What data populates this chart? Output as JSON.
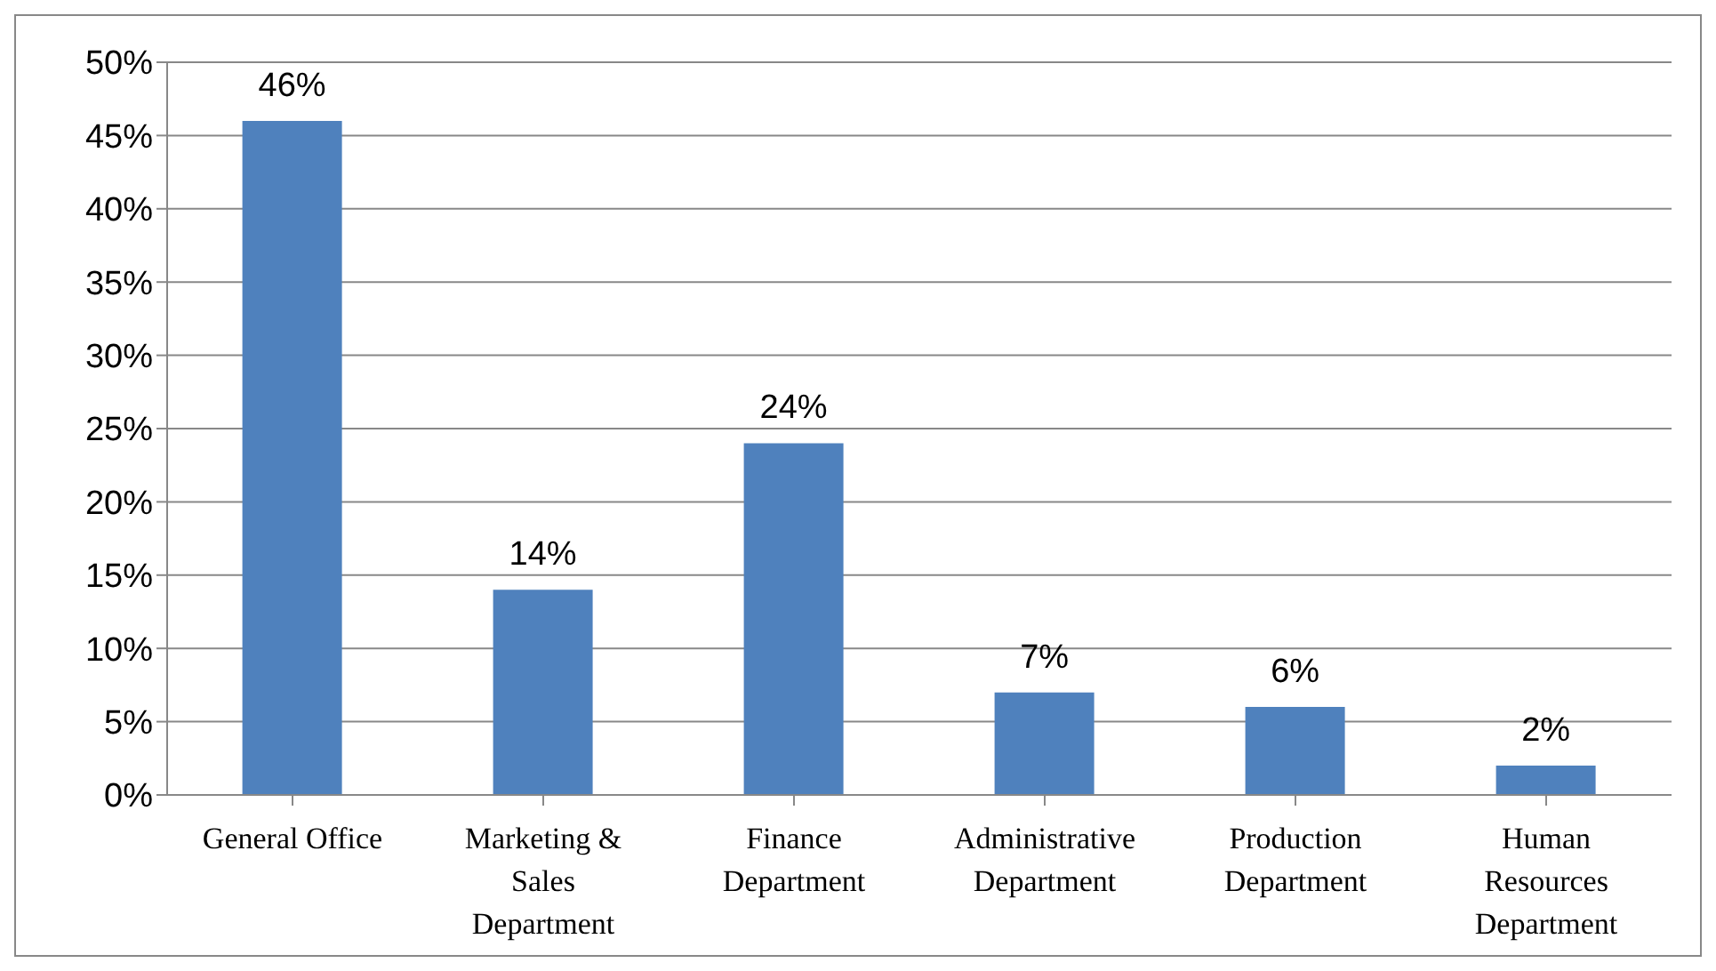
{
  "chart_data": {
    "type": "bar",
    "categories": [
      "General Office",
      "Marketing & Sales Department",
      "Finance Department",
      "Administrative Department",
      "Production Department",
      "Human Resources Department"
    ],
    "values": [
      46,
      14,
      24,
      7,
      6,
      2
    ],
    "color": "#4f81bd",
    "ylim": [
      0,
      50
    ],
    "yticks": [
      {
        "value": 0,
        "label": "0%"
      },
      {
        "value": 5,
        "label": "5%"
      },
      {
        "value": 10,
        "label": "10%"
      },
      {
        "value": 15,
        "label": "15%"
      },
      {
        "value": 20,
        "label": "20%"
      },
      {
        "value": 25,
        "label": "25%"
      },
      {
        "value": 30,
        "label": "30%"
      },
      {
        "value": 35,
        "label": "35%"
      },
      {
        "value": 40,
        "label": "40%"
      },
      {
        "value": 45,
        "label": "45%"
      },
      {
        "value": 50,
        "label": "50%"
      }
    ],
    "value_labels": [
      "46%",
      "14%",
      "24%",
      "7%",
      "6%",
      "2%"
    ],
    "grid": "y",
    "legend": false
  }
}
